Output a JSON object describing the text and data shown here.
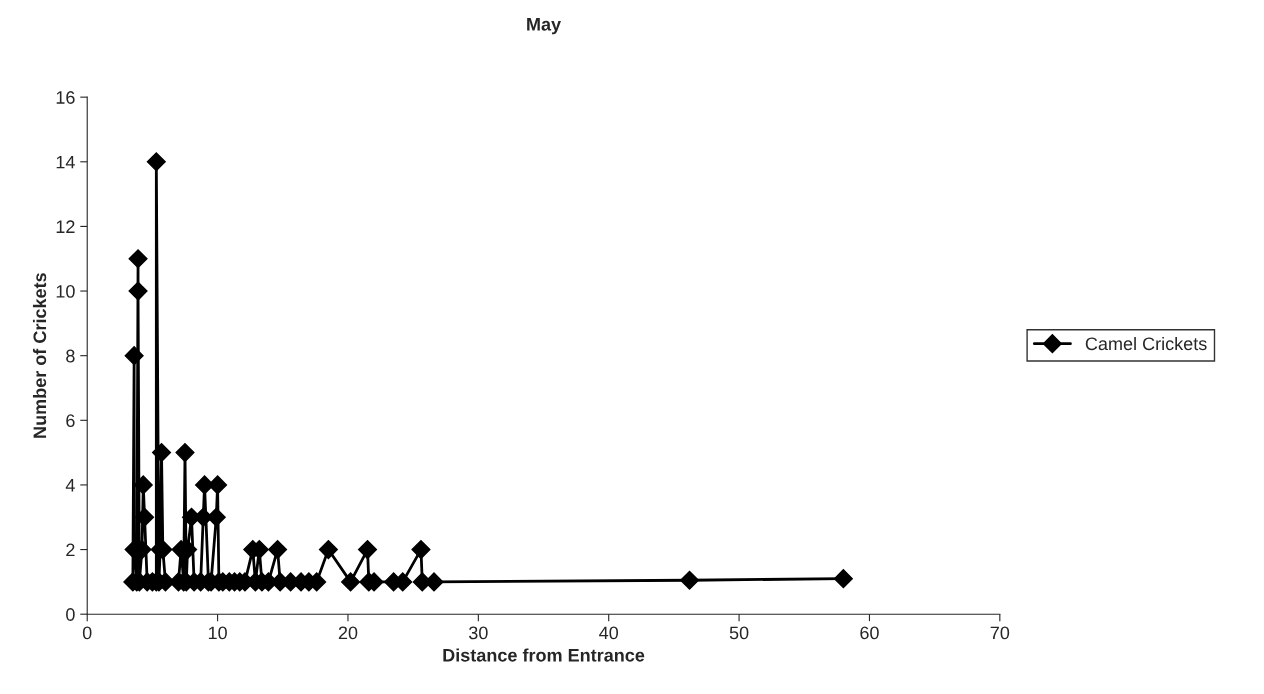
{
  "chart_data": {
    "type": "line",
    "title": "May",
    "xlabel": "Distance from Entrance",
    "ylabel": "Number of Crickets",
    "xlim": [
      0,
      70
    ],
    "xticks": [
      0,
      10,
      20,
      30,
      40,
      50,
      60,
      70
    ],
    "ylim": [
      0,
      16
    ],
    "yticks": [
      0,
      2,
      4,
      6,
      8,
      10,
      12,
      14,
      16
    ],
    "grid": false,
    "legend": "right",
    "marker": "diamond",
    "line_style": "solid",
    "series": [
      {
        "name": "Camel Crickets",
        "color": "#000000",
        "x": [
          3.5,
          3.6,
          3.6,
          3.8,
          3.9,
          3.9,
          4.0,
          4.2,
          4.3,
          4.4,
          4.6,
          5.0,
          5.3,
          5.3,
          5.5,
          5.6,
          5.7,
          5.8,
          6.0,
          7.0,
          7.2,
          7.4,
          7.5,
          7.6,
          7.7,
          8.0,
          8.2,
          8.7,
          8.9,
          9.0,
          9.3,
          9.5,
          9.9,
          10.0,
          10.1,
          10.4,
          10.9,
          11.3,
          11.7,
          12.1,
          12.7,
          12.9,
          13.2,
          13.4,
          13.9,
          14.6,
          14.8,
          15.6,
          16.4,
          17.0,
          17.6,
          18.5,
          20.2,
          21.5,
          21.6,
          22.0,
          23.5,
          24.2,
          25.6,
          25.7,
          26.6,
          46.2,
          58.0
        ],
        "values": [
          1,
          8,
          2,
          1,
          11,
          10,
          1,
          2,
          4,
          3,
          1,
          1,
          1,
          14,
          1,
          2,
          5,
          2,
          1,
          1,
          2,
          1,
          5,
          1,
          2,
          3,
          1,
          1,
          3,
          4,
          1,
          1,
          3,
          4,
          1,
          1,
          1,
          1,
          1,
          1,
          2,
          1,
          2,
          1,
          1,
          2,
          1,
          1,
          1,
          1,
          1,
          2,
          1,
          2,
          1,
          1,
          1,
          1,
          2,
          1,
          1,
          1.05,
          1.1
        ]
      }
    ]
  }
}
